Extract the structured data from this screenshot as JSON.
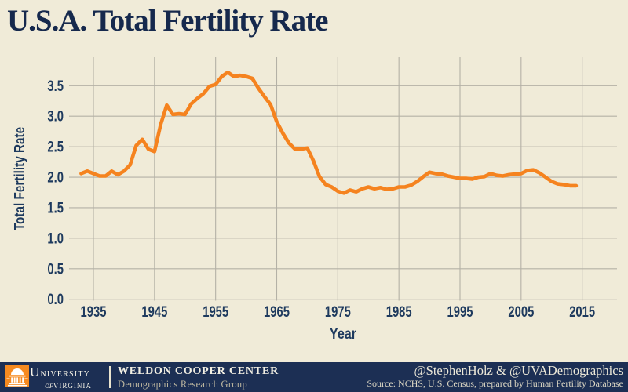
{
  "title": "U.S.A. Total Fertility Rate",
  "colors": {
    "background": "#f0ebd8",
    "navy_title": "#16294d",
    "navy_axis_text": "#1e3a5e",
    "gridline": "#b4b1a6",
    "line_orange": "#f5831f",
    "footer_navy": "#1c2f54",
    "logo_orange": "#f68a1f"
  },
  "chart_data": {
    "type": "line",
    "title": "U.S.A. Total Fertility Rate",
    "xlabel": "Year",
    "ylabel": "Total Fertility Rate",
    "x_ticks": [
      "1935",
      "1945",
      "1955",
      "1965",
      "1975",
      "1985",
      "1995",
      "2005",
      "2015"
    ],
    "y_ticks": [
      "0.0",
      "0.5",
      "1.0",
      "1.5",
      "2.0",
      "2.5",
      "3.0",
      "3.5"
    ],
    "xlim": [
      1931,
      2020.6
    ],
    "ylim": [
      0,
      3.99
    ],
    "grid": true,
    "legend_position": "none",
    "line_color": "#f5831f",
    "series": [
      {
        "name": "U.S.A. total fertility rate",
        "x": [
          1933,
          1934,
          1935,
          1936,
          1937,
          1938,
          1939,
          1940,
          1941,
          1942,
          1943,
          1944,
          1945,
          1946,
          1947,
          1948,
          1949,
          1950,
          1951,
          1952,
          1953,
          1954,
          1955,
          1956,
          1957,
          1958,
          1959,
          1960,
          1961,
          1962,
          1963,
          1964,
          1965,
          1966,
          1967,
          1968,
          1969,
          1970,
          1971,
          1972,
          1973,
          1974,
          1975,
          1976,
          1977,
          1978,
          1979,
          1980,
          1981,
          1982,
          1983,
          1984,
          1985,
          1986,
          1987,
          1988,
          1989,
          1990,
          1991,
          1992,
          1993,
          1994,
          1995,
          1996,
          1997,
          1998,
          1999,
          2000,
          2001,
          2002,
          2003,
          2004,
          2005,
          2006,
          2007,
          2008,
          2009,
          2010,
          2011,
          2012,
          2013,
          2014
        ],
        "y": [
          2.06,
          2.1,
          2.06,
          2.02,
          2.02,
          2.1,
          2.04,
          2.1,
          2.2,
          2.52,
          2.62,
          2.46,
          2.42,
          2.86,
          3.18,
          3.03,
          3.04,
          3.03,
          3.2,
          3.29,
          3.37,
          3.49,
          3.52,
          3.65,
          3.72,
          3.65,
          3.67,
          3.65,
          3.62,
          3.46,
          3.32,
          3.19,
          2.91,
          2.72,
          2.56,
          2.46,
          2.46,
          2.48,
          2.27,
          2.01,
          1.88,
          1.84,
          1.77,
          1.74,
          1.79,
          1.76,
          1.81,
          1.84,
          1.81,
          1.83,
          1.8,
          1.81,
          1.84,
          1.84,
          1.87,
          1.93,
          2.01,
          2.08,
          2.06,
          2.05,
          2.02,
          2.0,
          1.98,
          1.98,
          1.97,
          2.0,
          2.01,
          2.06,
          2.03,
          2.02,
          2.04,
          2.05,
          2.06,
          2.11,
          2.12,
          2.07,
          2.0,
          1.93,
          1.89,
          1.88,
          1.86,
          1.86
        ]
      }
    ]
  },
  "footer": {
    "university_line1": "University",
    "university_of": "of",
    "university_line2": "Virginia",
    "center_title": "WELDON COOPER CENTER",
    "center_subtitle": "Demographics Research Group",
    "handles": "@StephenHolz & @UVADemographics",
    "source": "Source: NCHS, U.S. Census, prepared by Human Fertility Database"
  }
}
